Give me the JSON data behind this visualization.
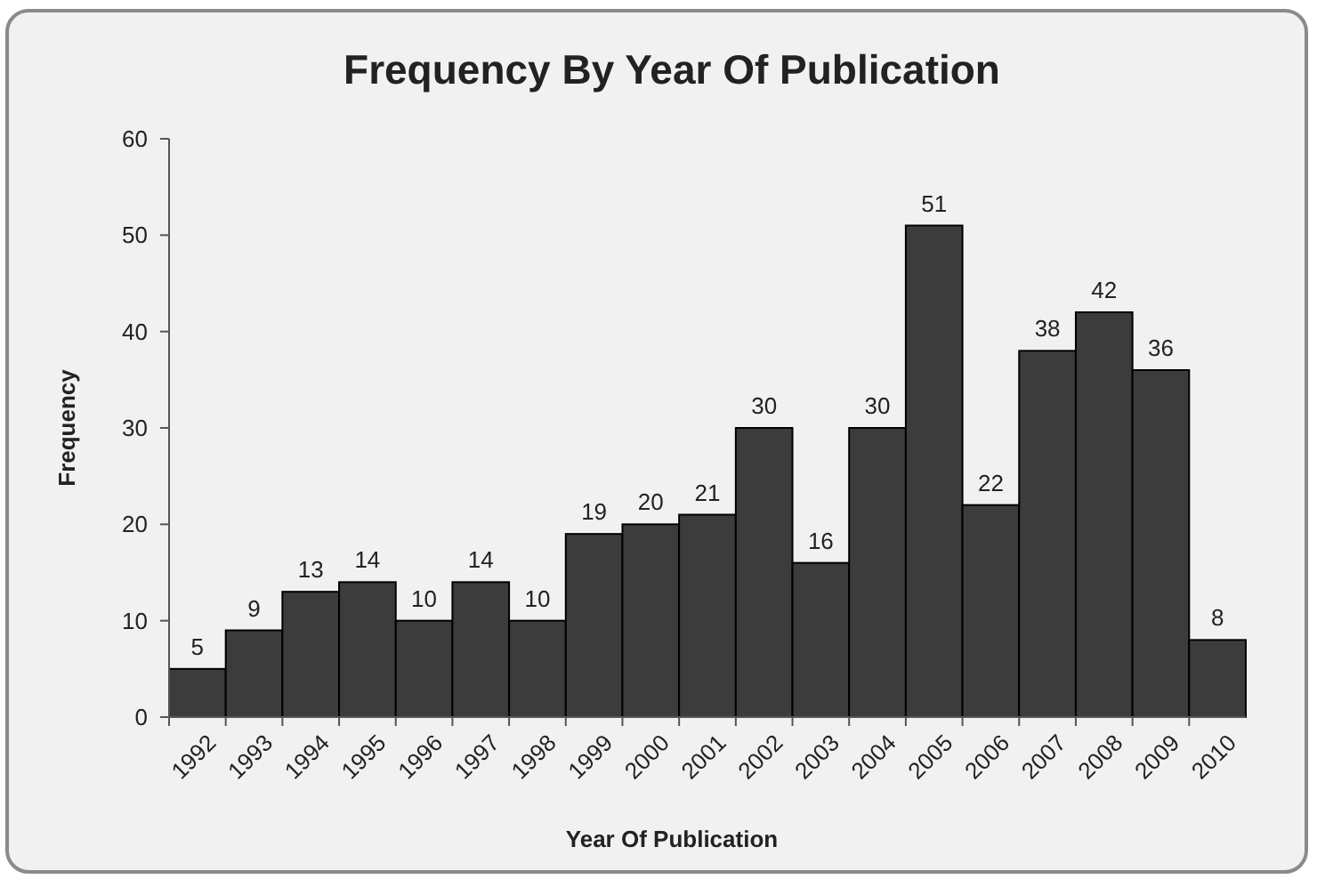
{
  "chart_data": {
    "type": "bar",
    "title": "Frequency By Year Of Publication",
    "xlabel": "Year Of Publication",
    "ylabel": "Frequency",
    "categories": [
      "1992",
      "1993",
      "1994",
      "1995",
      "1996",
      "1997",
      "1998",
      "1999",
      "2000",
      "2001",
      "2002",
      "2003",
      "2004",
      "2005",
      "2006",
      "2007",
      "2008",
      "2009",
      "2010"
    ],
    "values": [
      5,
      9,
      13,
      14,
      10,
      14,
      10,
      19,
      20,
      21,
      30,
      16,
      30,
      51,
      22,
      38,
      42,
      36,
      8
    ],
    "color": "#3c3c3c",
    "ylim": [
      0,
      60
    ],
    "yticks": [
      0,
      10,
      20,
      30,
      40,
      50,
      60
    ],
    "data_labels": true,
    "grid": false
  }
}
